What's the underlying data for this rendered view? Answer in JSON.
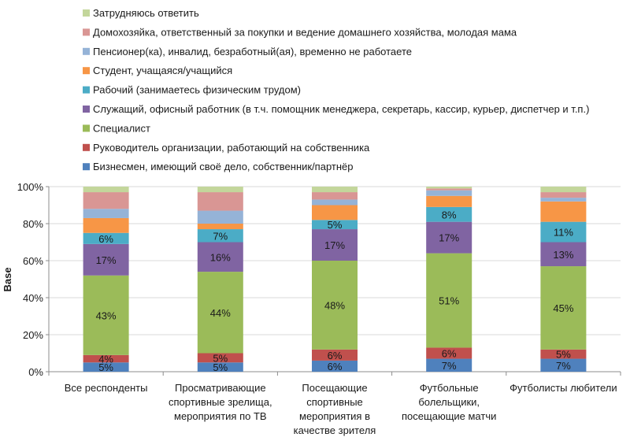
{
  "chart_data": {
    "type": "bar",
    "stacked": true,
    "ylabel": "Base",
    "ylim": [
      0,
      100
    ],
    "y_ticks": [
      "0%",
      "20%",
      "40%",
      "60%",
      "80%",
      "100%"
    ],
    "grid": "horizontal",
    "legend_position": "top",
    "categories": [
      [
        "Все респонденты"
      ],
      [
        "Просматривающие",
        "спортивные зрелища,",
        "мероприятия по ТВ"
      ],
      [
        "Посещающие",
        "спортивные",
        "мероприятия в",
        "качестве зрителя"
      ],
      [
        "Футбольные",
        "болельщики,",
        "посещающие матчи"
      ],
      [
        "Футболисты любители"
      ]
    ],
    "series": [
      {
        "name": "Бизнесмен, имеющий своё дело, собственник/партнёр",
        "color": "#4f81bd",
        "values": [
          5,
          5,
          6,
          7,
          7
        ],
        "labels": [
          "5%",
          "5%",
          "6%",
          "7%",
          "7%"
        ]
      },
      {
        "name": "Руководитель организации, работающий на собственника",
        "color": "#c0504d",
        "values": [
          4,
          5,
          6,
          6,
          5
        ],
        "labels": [
          "4%",
          "5%",
          "6%",
          "6%",
          "5%"
        ]
      },
      {
        "name": "Специалист",
        "color": "#9bbb59",
        "values": [
          43,
          44,
          48,
          51,
          45
        ],
        "labels": [
          "43%",
          "44%",
          "48%",
          "51%",
          "45%"
        ]
      },
      {
        "name": "Служащий, офисный работник (в т.ч. помощник менеджера, секретарь, кассир, курьер,  диспетчер и т.п.)",
        "color": "#8064a2",
        "values": [
          17,
          16,
          17,
          17,
          13
        ],
        "labels": [
          "17%",
          "16%",
          "17%",
          "17%",
          "13%"
        ]
      },
      {
        "name": "Рабочий (занимаетесь физическим трудом)",
        "color": "#4bacc6",
        "values": [
          6,
          7,
          5,
          8,
          11
        ],
        "labels": [
          "6%",
          "7%",
          "5%",
          "8%",
          "11%"
        ]
      },
      {
        "name": "Студент, учащаяся/учащийся",
        "color": "#f79646",
        "values": [
          8,
          3,
          8,
          6,
          11
        ],
        "labels": [
          "",
          "",
          "",
          "",
          ""
        ]
      },
      {
        "name": "Пенсионер(ка), инвалид, безработный(ая), временно не работаете",
        "color": "#95b3d7",
        "values": [
          5,
          7,
          3,
          3,
          2
        ],
        "labels": [
          "",
          "",
          "",
          "",
          ""
        ]
      },
      {
        "name": "Домохозяйка, ответственный за покупки и ведение домашнего хозяйства, молодая мама",
        "color": "#d99694",
        "values": [
          9,
          10,
          4,
          1,
          3
        ],
        "labels": [
          "",
          "",
          "",
          "",
          ""
        ]
      },
      {
        "name": "Затрудняюсь ответить",
        "color": "#c3d69b",
        "values": [
          3,
          3,
          3,
          1,
          3
        ],
        "labels": [
          "",
          "",
          "",
          "",
          ""
        ]
      }
    ]
  }
}
